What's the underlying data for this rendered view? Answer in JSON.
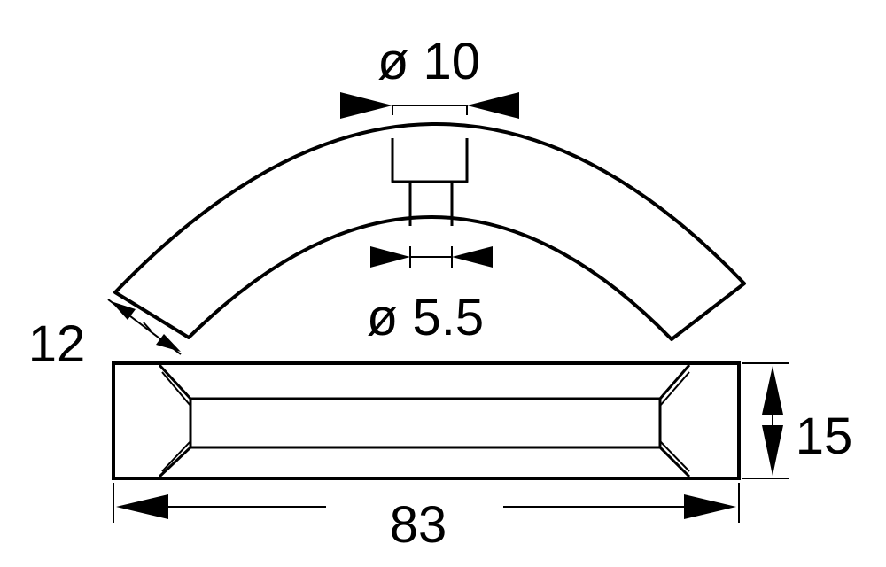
{
  "drawing": {
    "line_color": "#000000",
    "background_color": "#ffffff",
    "dimensions": {
      "hole_large": "ø 10",
      "hole_small": "ø 5.5",
      "thickness": "12",
      "height": "15",
      "length": "83"
    }
  }
}
